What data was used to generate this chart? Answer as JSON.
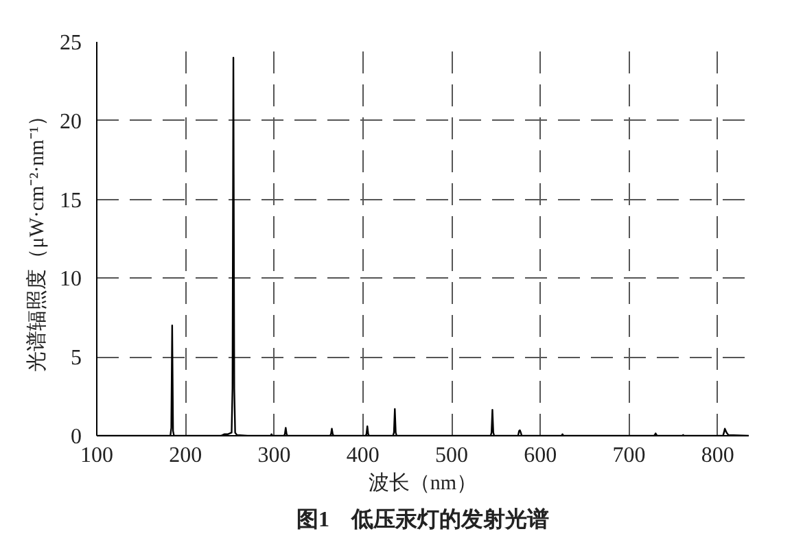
{
  "chart_data": {
    "type": "line",
    "title": "图1　低压汞灯的发射光谱",
    "xlabel": "波长（nm）",
    "ylabel": "光谱辐照度（μW·cm⁻²·nm⁻¹）",
    "x": [
      100,
      183,
      184,
      185,
      186,
      187,
      240,
      244,
      248,
      252,
      253,
      254,
      255,
      256,
      258,
      270,
      296,
      297,
      298,
      311,
      312,
      313,
      314,
      315,
      363,
      364,
      365,
      366,
      367,
      403,
      404,
      405,
      406,
      407,
      434,
      435,
      436,
      437,
      438,
      544,
      545,
      546,
      547,
      548,
      575,
      576,
      577,
      578,
      579,
      624,
      625,
      626,
      728,
      729,
      730,
      731,
      732,
      760,
      761,
      762,
      806,
      807,
      808,
      810,
      812,
      835
    ],
    "series": [
      {
        "color": "#000000",
        "values": [
          0,
          0,
          0.5,
          7.0,
          0.3,
          0,
          0,
          0.1,
          0.1,
          0.2,
          3,
          24.0,
          3,
          0.2,
          0.05,
          0,
          0,
          0.1,
          0,
          0,
          0.1,
          0.5,
          0.1,
          0,
          0,
          0.1,
          0.45,
          0.1,
          0,
          0,
          0.1,
          0.6,
          0.1,
          0,
          0,
          0.2,
          1.7,
          0.2,
          0,
          0,
          0.2,
          1.65,
          0.2,
          0,
          0,
          0.3,
          0.35,
          0.2,
          0,
          0,
          0.1,
          0,
          0,
          0.05,
          0.15,
          0.05,
          0,
          0,
          0.05,
          0,
          0,
          0.2,
          0.45,
          0.2,
          0.05,
          0
        ]
      }
    ],
    "xlim": [
      100,
      835
    ],
    "ylim": [
      0,
      25
    ],
    "xticks": [
      100,
      200,
      300,
      400,
      500,
      600,
      700,
      800
    ],
    "yticks": [
      0,
      5,
      10,
      15,
      20,
      25
    ],
    "grid": true,
    "line_style": "solid",
    "marker": "none"
  }
}
